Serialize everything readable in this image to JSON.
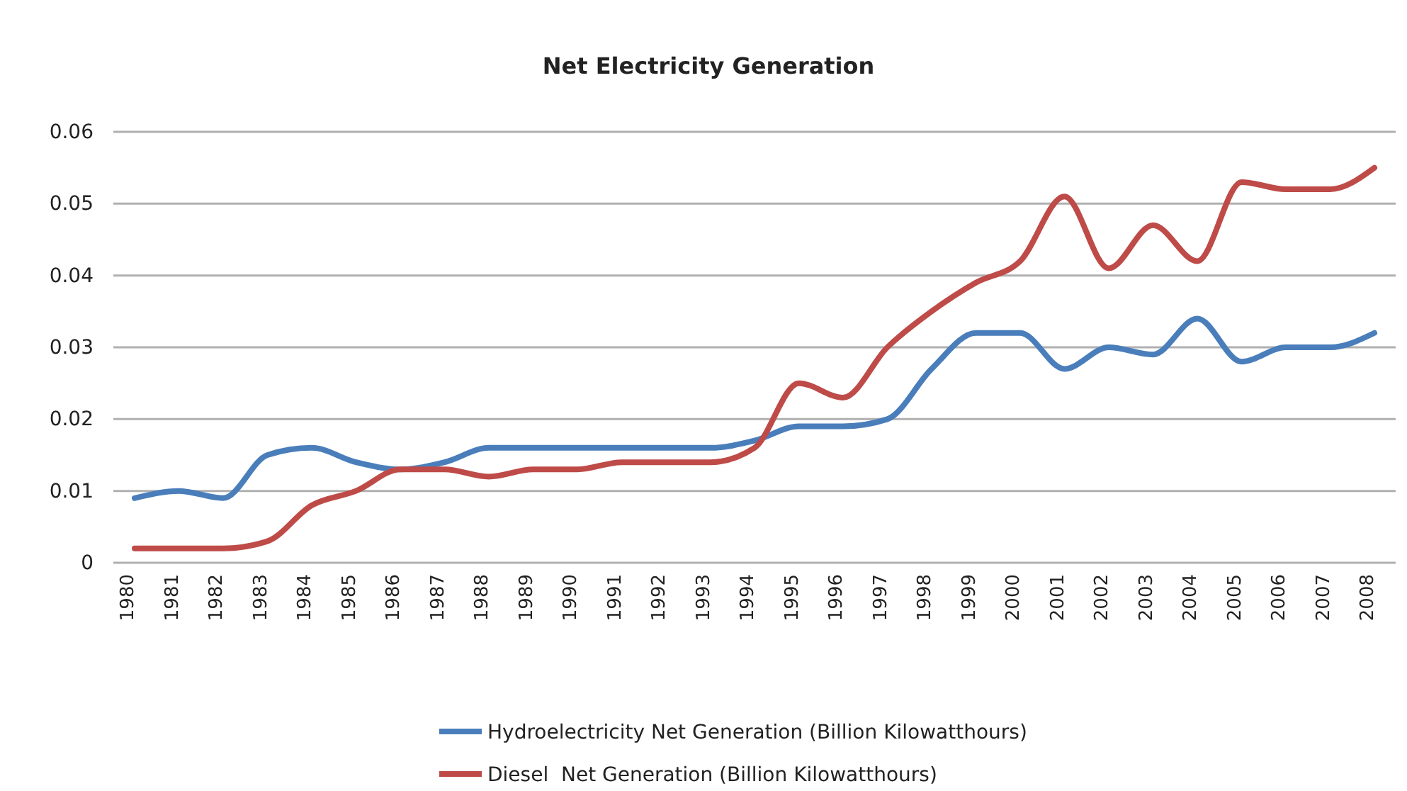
{
  "chart_data": {
    "type": "line",
    "title": "Net Electricity Generation",
    "categories": [
      "1980",
      "1981",
      "1982",
      "1983",
      "1984",
      "1985",
      "1986",
      "1987",
      "1988",
      "1989",
      "1990",
      "1991",
      "1992",
      "1993",
      "1994",
      "1995",
      "1996",
      "1997",
      "1998",
      "1999",
      "2000",
      "2001",
      "2002",
      "2003",
      "2004",
      "2005",
      "2006",
      "2007",
      "2008"
    ],
    "series": [
      {
        "name": "Hydroelectricity Net Generation (Billion Kilowatthours)",
        "color": "#4a7ebb",
        "values": [
          0.009,
          0.01,
          0.009,
          0.015,
          0.016,
          0.014,
          0.013,
          0.014,
          0.016,
          0.016,
          0.016,
          0.016,
          0.016,
          0.016,
          0.017,
          0.019,
          0.019,
          0.02,
          0.027,
          0.032,
          0.032,
          0.027,
          0.03,
          0.029,
          0.034,
          0.028,
          0.03,
          0.03,
          0.032
        ]
      },
      {
        "name": "Diesel  Net Generation (Billion Kilowatthours)",
        "color": "#be4b48",
        "values": [
          0.002,
          0.002,
          0.002,
          0.003,
          0.008,
          0.01,
          0.013,
          0.013,
          0.012,
          0.013,
          0.013,
          0.014,
          0.014,
          0.014,
          0.016,
          0.025,
          0.023,
          0.03,
          0.035,
          0.039,
          0.042,
          0.051,
          0.041,
          0.047,
          0.042,
          0.053,
          0.052,
          0.052,
          0.055
        ]
      }
    ],
    "ylim": [
      0,
      0.06
    ],
    "yticks": [
      0,
      0.01,
      0.02,
      0.03,
      0.04,
      0.05,
      0.06
    ],
    "grid": "y",
    "legend": "bottom",
    "marker": "none",
    "line_style": "solid"
  }
}
